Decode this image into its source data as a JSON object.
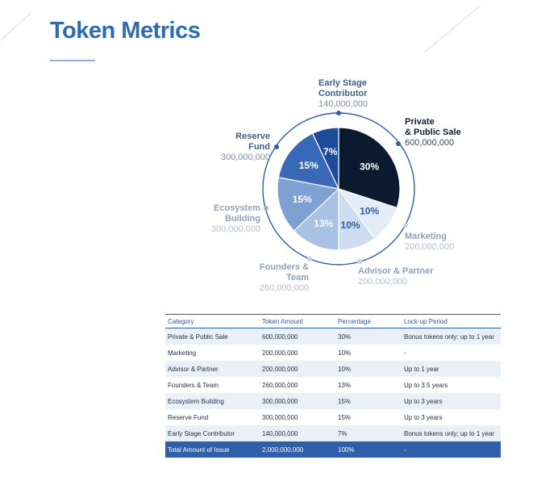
{
  "page": {
    "title": "Token Metrics"
  },
  "colors": {
    "title": "#2c6cb4",
    "table_header": "#2f5fa8"
  },
  "chart_data": {
    "type": "pie",
    "title": "Token Metrics",
    "slices": [
      {
        "name": "Private & Public Sale",
        "amount": "600,000,000",
        "percent": 30,
        "label": "30%",
        "color": "#0c1a30",
        "label_color": "#ffffff"
      },
      {
        "name": "Marketing",
        "amount": "200,000,000",
        "percent": 10,
        "label": "10%",
        "color": "#e4ecf8",
        "label_color": "#2f5fa8"
      },
      {
        "name": "Advisor & Partner",
        "amount": "200,000,000",
        "percent": 10,
        "label": "10%",
        "color": "#cddcef",
        "label_color": "#2f5fa8"
      },
      {
        "name": "Founders & Team",
        "amount": "260,000,000",
        "percent": 13,
        "label": "13%",
        "color": "#a9c1e2",
        "label_color": "#ffffff"
      },
      {
        "name": "Ecosystem Building",
        "amount": "300,000,000",
        "percent": 15,
        "label": "15%",
        "color": "#7ea0d3",
        "label_color": "#ffffff"
      },
      {
        "name": "Reserve Fund",
        "amount": "300,000,000",
        "percent": 15,
        "label": "15%",
        "color": "#3a68b8",
        "label_color": "#ffffff"
      },
      {
        "name": "Early Stage Contributor",
        "amount": "140,000,000",
        "percent": 7,
        "label": "7%",
        "color": "#1d4a99",
        "label_color": "#ffffff"
      }
    ]
  },
  "labels": {
    "early": {
      "line1": "Early Stage",
      "line2": "Contributor",
      "amount": "140,000,000"
    },
    "private": {
      "line1": "Private",
      "line2": "& Public Sale",
      "amount": "600,000,000"
    },
    "reserve": {
      "name": "Reserve Fund",
      "amount": "300,000,000"
    },
    "ecosystem": {
      "name": "Ecosystem Building",
      "amount": "300,000,000"
    },
    "marketing": {
      "name": "Marketing",
      "amount": "200,000,000"
    },
    "founders": {
      "name": "Founders & Team",
      "amount": "260,000,000"
    },
    "advisor": {
      "name": "Advisor & Partner",
      "amount": "200,000,000"
    }
  },
  "table": {
    "headers": [
      "Category",
      "Token Amount",
      "Percentage",
      "Lock-up Period"
    ],
    "rows": [
      [
        "Private & Public Sale",
        "600,000,000",
        "30%",
        "Bonus tokens only; up to 1 year"
      ],
      [
        "Marketing",
        "200,000,000",
        "10%",
        "-"
      ],
      [
        "Advisor & Partner",
        "200,000,000",
        "10%",
        "Up to 1 year"
      ],
      [
        "Founders & Team",
        "260,000,000",
        "13%",
        "Up to 3.5 years"
      ],
      [
        "Ecosystem Building",
        "300,000,000",
        "15%",
        "Up to 3 years"
      ],
      [
        "Reserve Fund",
        "300,000,000",
        "15%",
        "Up to 3 years"
      ],
      [
        "Early Stage Contributor",
        "140,000,000",
        "7%",
        "Bonus tokens only; up to 1 year"
      ]
    ],
    "total": [
      "Total Amount of Issue",
      "2,000,000,000",
      "100%",
      "-"
    ]
  }
}
